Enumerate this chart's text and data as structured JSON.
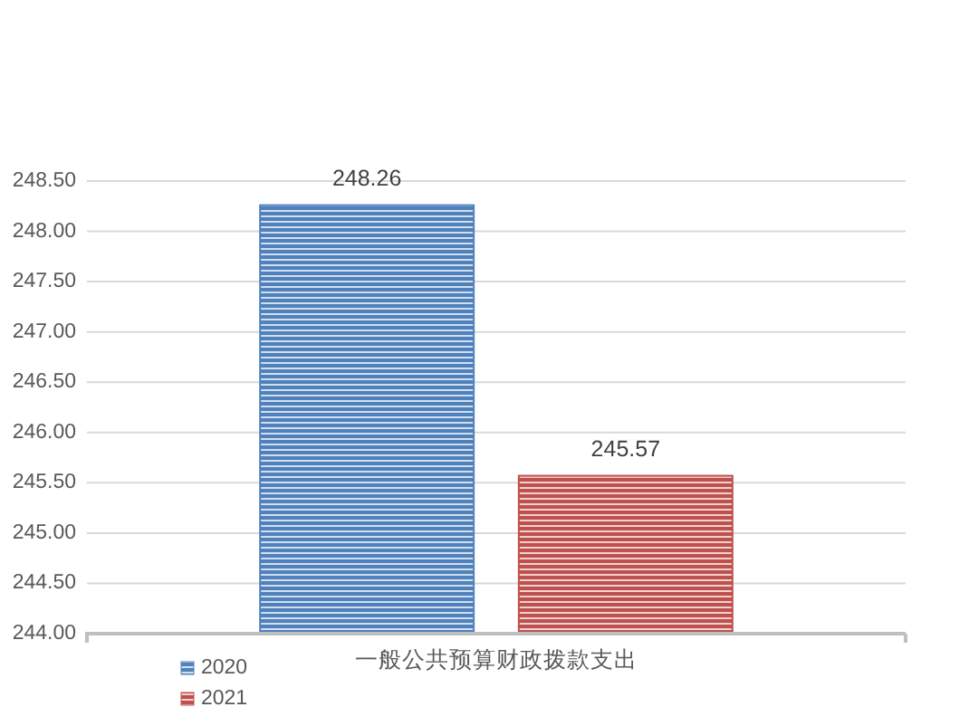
{
  "chart_data": {
    "type": "bar",
    "categories": [
      "一般公共预算财政拨款支出"
    ],
    "series": [
      {
        "name": "2020",
        "color": "#4f81bd",
        "values": [
          248.26
        ]
      },
      {
        "name": "2021",
        "color": "#c0504d",
        "values": [
          245.57
        ]
      }
    ],
    "ylim": [
      244,
      248.5
    ],
    "yticks": [
      {
        "value": 244,
        "label": "244.00"
      },
      {
        "value": 244.5,
        "label": "244.50"
      },
      {
        "value": 245,
        "label": "245.00"
      },
      {
        "value": 245.5,
        "label": "245.50"
      },
      {
        "value": 246,
        "label": "246.00"
      },
      {
        "value": 246.5,
        "label": "246.50"
      },
      {
        "value": 247,
        "label": "247.00"
      },
      {
        "value": 247.5,
        "label": "247.50"
      },
      {
        "value": 248,
        "label": "248.00"
      },
      {
        "value": 248.5,
        "label": "248.50"
      }
    ],
    "grid": "y",
    "legend": "bottom left",
    "data_labels": true
  }
}
